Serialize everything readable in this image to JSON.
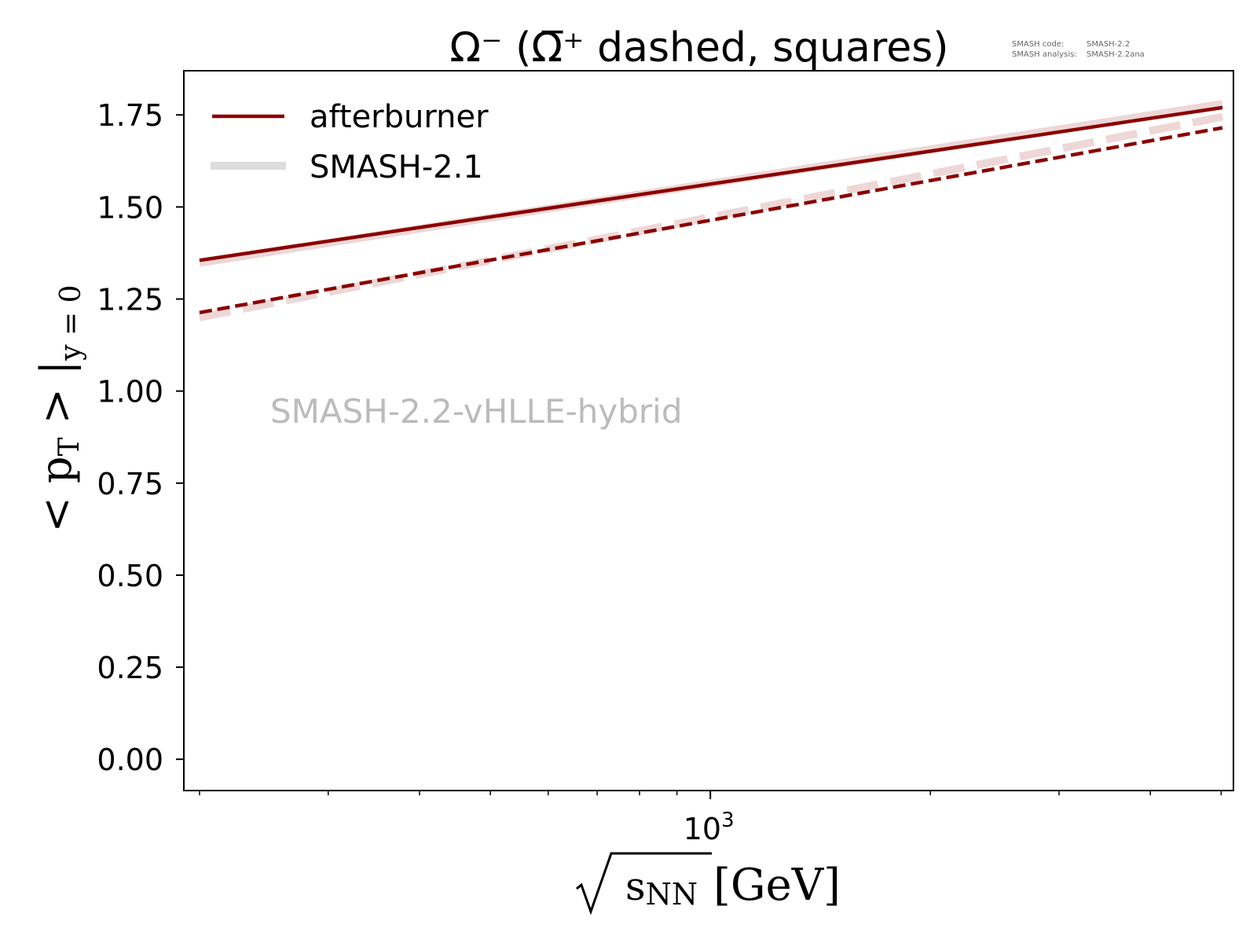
{
  "chart_data": {
    "type": "line",
    "title": "Ω⁻ (Ω̅⁺ dashed, squares)",
    "watermark": "SMASH-2.2-vHLLE-hybrid",
    "info_box": {
      "code_label": "SMASH code:",
      "code_value": "SMASH-2.2",
      "analysis_label": "SMASH analysis:",
      "analysis_value": "SMASH-2.2ana"
    },
    "xlabel": {
      "symbol": "s",
      "subscript": "NN",
      "unit": "[GeV]"
    },
    "ylabel": {
      "symbol": "< p",
      "subscript_T": "T",
      "close": " > |",
      "subscript_y": "y = 0"
    },
    "x_scale": "log",
    "xlim": [
      200,
      5020
    ],
    "ylim": [
      -0.085,
      1.87
    ],
    "x_ticks_major": [
      {
        "value": 1000,
        "base": "10",
        "exponent": "3"
      }
    ],
    "x_ticks_minor": [
      200,
      300,
      400,
      500,
      600,
      700,
      800,
      900,
      2000,
      3000,
      4000,
      5000
    ],
    "y_ticks": [
      {
        "value": 0.0,
        "label": "0.00"
      },
      {
        "value": 0.25,
        "label": "0.25"
      },
      {
        "value": 0.5,
        "label": "0.50"
      },
      {
        "value": 0.75,
        "label": "0.75"
      },
      {
        "value": 1.0,
        "label": "1.00"
      },
      {
        "value": 1.25,
        "label": "1.25"
      },
      {
        "value": 1.5,
        "label": "1.50"
      },
      {
        "value": 1.75,
        "label": "1.75"
      }
    ],
    "grid": false,
    "legend_position": "top-left",
    "legend": [
      {
        "label": "afterburner",
        "color": "#8b0000",
        "style": "solid-thin"
      },
      {
        "label": "SMASH-2.1",
        "color": "#dddddd",
        "style": "solid-thick"
      }
    ],
    "series": [
      {
        "name": "afterburner",
        "particle": "Ω⁻",
        "color": "#8b0000",
        "dash": false,
        "width": 4.5,
        "opacity": 1,
        "x": [
          200,
          5020
        ],
        "y": [
          1.355,
          1.77
        ]
      },
      {
        "particle": "Ω̅⁺",
        "color": "#8b0000",
        "dash": true,
        "width": 4.5,
        "opacity": 1,
        "x": [
          200,
          5020
        ],
        "y": [
          1.213,
          1.715
        ]
      },
      {
        "name": "SMASH-2.1",
        "particle": "Ω⁻",
        "color": "#e4c2c2",
        "dash": false,
        "width": 10,
        "opacity": 0.65,
        "x": [
          200,
          5020
        ],
        "y": [
          1.348,
          1.78
        ]
      },
      {
        "particle": "Ω̅⁺",
        "color": "#e4c2c2",
        "dash": true,
        "width": 10,
        "opacity": 0.65,
        "x": [
          200,
          5020
        ],
        "y": [
          1.2,
          1.745
        ]
      }
    ]
  }
}
